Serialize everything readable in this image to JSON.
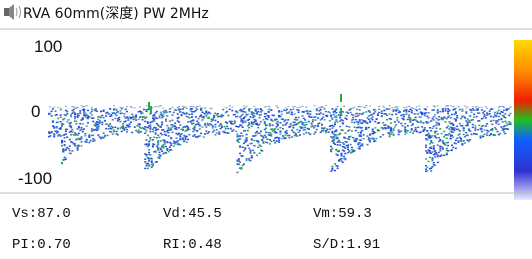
{
  "header": {
    "title": "RVA 60mm(深度)  PW  2MHz"
  },
  "scale": {
    "labels": [
      "100",
      "0",
      "-100"
    ]
  },
  "measurements": {
    "rows": [
      [
        "Vs:87.0",
        "Vd:45.5",
        "Vm:59.3"
      ],
      [
        "PI:0.70",
        "RI:0.48",
        "S/D:1.91"
      ]
    ]
  }
}
